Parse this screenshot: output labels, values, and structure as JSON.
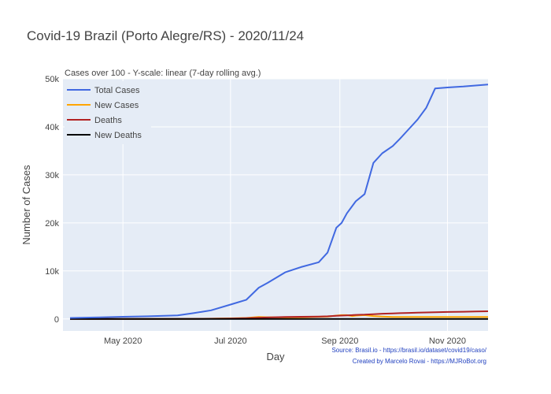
{
  "chart_data": {
    "type": "line",
    "title": "Covid-19 Brazil (Porto Alegre/RS) - 2020/11/24",
    "subtitle": "Cases over 100 - Y-scale: linear (7-day rolling avg.)",
    "xlabel": "Day",
    "ylabel": "Number of Cases",
    "x_ticks": [
      "May 2020",
      "Jul 2020",
      "Sep 2020",
      "Nov 2020"
    ],
    "y_ticks": [
      "0",
      "10k",
      "20k",
      "30k",
      "40k",
      "50k"
    ],
    "ylim": [
      -2500,
      50000
    ],
    "grid": true,
    "legend_position": "top-left",
    "x": [
      "2020-04-01",
      "2020-04-15",
      "2020-05-01",
      "2020-05-15",
      "2020-06-01",
      "2020-06-10",
      "2020-06-15",
      "2020-06-20",
      "2020-07-01",
      "2020-07-10",
      "2020-07-17",
      "2020-07-22",
      "2020-08-01",
      "2020-08-10",
      "2020-08-20",
      "2020-08-25",
      "2020-08-30",
      "2020-09-02",
      "2020-09-05",
      "2020-09-08",
      "2020-09-10",
      "2020-09-15",
      "2020-09-20",
      "2020-09-25",
      "2020-10-01",
      "2020-10-05",
      "2020-10-10",
      "2020-10-15",
      "2020-10-20",
      "2020-10-25",
      "2020-11-01",
      "2020-11-10",
      "2020-11-17",
      "2020-11-24"
    ],
    "series": [
      {
        "name": "Total Cases",
        "color": "#4169e1",
        "values": [
          200,
          300,
          450,
          550,
          750,
          1200,
          1500,
          1800,
          3000,
          4000,
          6500,
          7500,
          9700,
          10800,
          11800,
          13800,
          19000,
          20000,
          22000,
          23500,
          24500,
          26000,
          32500,
          34500,
          36000,
          37500,
          39500,
          41500,
          44000,
          48000,
          48200,
          48400,
          48600,
          48800
        ]
      },
      {
        "name": "New Cases",
        "color": "#ffa500",
        "values": [
          5,
          6,
          8,
          10,
          15,
          25,
          40,
          60,
          120,
          200,
          400,
          350,
          300,
          350,
          450,
          500,
          700,
          800,
          800,
          600,
          700,
          800,
          600,
          500,
          400,
          400,
          400,
          400,
          400,
          400,
          400,
          400,
          400,
          400
        ]
      },
      {
        "name": "Deaths",
        "color": "#b22222",
        "values": [
          5,
          8,
          12,
          16,
          20,
          25,
          30,
          40,
          80,
          150,
          250,
          300,
          400,
          450,
          500,
          550,
          650,
          700,
          750,
          800,
          850,
          900,
          1000,
          1100,
          1150,
          1200,
          1250,
          1300,
          1350,
          1400,
          1450,
          1500,
          1550,
          1600
        ]
      },
      {
        "name": "New Deaths",
        "color": "#000000",
        "values": [
          0,
          0,
          0,
          0,
          0,
          1,
          1,
          1,
          2,
          3,
          5,
          6,
          8,
          8,
          9,
          9,
          10,
          10,
          10,
          10,
          10,
          10,
          10,
          10,
          10,
          10,
          10,
          10,
          10,
          10,
          10,
          10,
          10,
          10
        ]
      }
    ],
    "source_lines": [
      "Source: Brasil.io - https://brasil.io/dataset/covid19/caso/",
      "Created by Marcelo Rovai - https://MJRoBot.org"
    ],
    "colors": {
      "plot_bg": "#e5ecf6",
      "grid": "#ffffff",
      "text": "#444444",
      "source": "#1f3fbf"
    }
  }
}
